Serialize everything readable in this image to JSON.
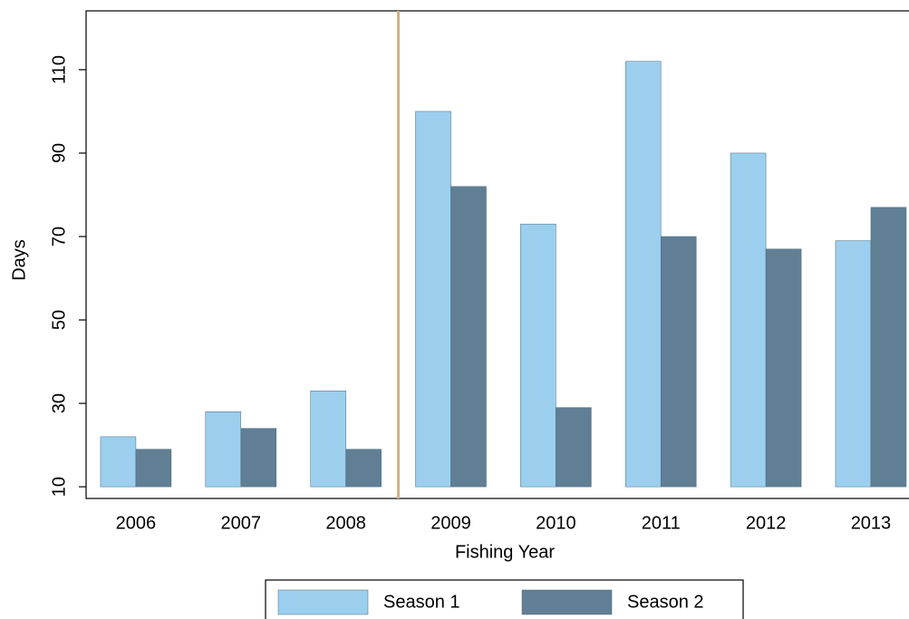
{
  "chart_data": {
    "type": "bar",
    "x_label": "Fishing Year",
    "y_label": "Days",
    "categories": [
      "2006",
      "2007",
      "2008",
      "2009",
      "2010",
      "2011",
      "2012",
      "2013"
    ],
    "series": [
      {
        "name": "Season 1",
        "color": "#9ccfee",
        "values": [
          22,
          28,
          33,
          100,
          73,
          112,
          90,
          69
        ]
      },
      {
        "name": "Season 2",
        "color": "#607f94",
        "values": [
          19,
          24,
          19,
          82,
          29,
          70,
          67,
          77
        ]
      }
    ],
    "base": 10,
    "ylim": [
      7.2,
      124.1
    ],
    "yticks": [
      10,
      30,
      50,
      70,
      90,
      110
    ],
    "grid": false
  }
}
